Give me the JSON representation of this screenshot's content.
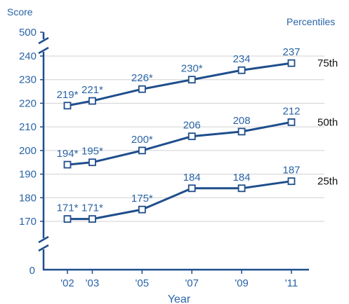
{
  "chart_data": {
    "type": "line",
    "y_axis_title": "Score",
    "x_axis_title": "Year",
    "right_header": "Percentiles",
    "x": [
      "'02",
      "'03",
      "'05",
      "'07",
      "'09",
      "'11"
    ],
    "x_numeric": [
      2002,
      2003,
      2005,
      2007,
      2009,
      2011
    ],
    "y_ticks": [
      170,
      180,
      190,
      200,
      210,
      220,
      230,
      240
    ],
    "y_break_ticks": [
      "500",
      "0"
    ],
    "ylim": [
      0,
      500
    ],
    "y_visible_range": [
      170,
      240
    ],
    "axis_break": true,
    "series": [
      {
        "name": "75th",
        "values": [
          219,
          221,
          226,
          230,
          234,
          237
        ],
        "labels": [
          "219*",
          "221*",
          "226*",
          "230*",
          "234",
          "237"
        ]
      },
      {
        "name": "50th",
        "values": [
          194,
          195,
          200,
          206,
          208,
          212
        ],
        "labels": [
          "194*",
          "195*",
          "200*",
          "206",
          "208",
          "212"
        ]
      },
      {
        "name": "25th",
        "values": [
          171,
          171,
          175,
          184,
          184,
          187
        ],
        "labels": [
          "171*",
          "171*",
          "175*",
          "184",
          "184",
          "187"
        ]
      }
    ],
    "grid": "horizontal",
    "colors": {
      "line": "#1f4e8c",
      "label": "#2a64a6",
      "axis": "#1f4e8c",
      "grid": "#d0d0d0",
      "series_name": "#111111"
    }
  }
}
